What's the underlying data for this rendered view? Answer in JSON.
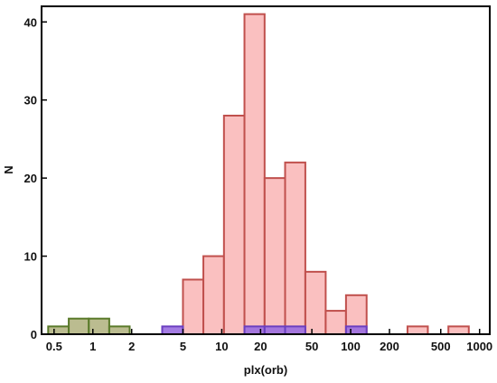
{
  "chart_data": {
    "type": "bar",
    "title": "",
    "xlabel": "plx(orb)",
    "ylabel": "N",
    "x_scale": "log",
    "xlim": [
      0.4,
      1200
    ],
    "ylim": [
      0,
      42
    ],
    "grid": false,
    "x_ticks": [
      0.5,
      1,
      2,
      5,
      10,
      20,
      50,
      100,
      200,
      500,
      1000
    ],
    "x_tick_labels": [
      "0.5",
      "1",
      "2",
      "5",
      "10",
      "20",
      "50",
      "100",
      "200",
      "500",
      "1000"
    ],
    "y_ticks": [
      0,
      10,
      20,
      30,
      40
    ],
    "y_tick_labels": [
      "0",
      "10",
      "20",
      "30",
      "40"
    ],
    "series": [
      {
        "fill": "#f9b9b9",
        "stroke": "#c0504d",
        "bins": [
          {
            "x0": 5.0,
            "x1": 7.2,
            "count": 7
          },
          {
            "x0": 7.2,
            "x1": 10.4,
            "count": 10
          },
          {
            "x0": 10.4,
            "x1": 15.0,
            "count": 28
          },
          {
            "x0": 15.0,
            "x1": 21.5,
            "count": 41
          },
          {
            "x0": 21.5,
            "x1": 31.0,
            "count": 20
          },
          {
            "x0": 31.0,
            "x1": 44.5,
            "count": 22
          },
          {
            "x0": 44.5,
            "x1": 64.0,
            "count": 8
          },
          {
            "x0": 64.0,
            "x1": 92.0,
            "count": 3
          },
          {
            "x0": 92.0,
            "x1": 133.0,
            "count": 5
          },
          {
            "x0": 276.0,
            "x1": 397.0,
            "count": 1
          },
          {
            "x0": 573.0,
            "x1": 825.0,
            "count": 1
          }
        ]
      },
      {
        "fill": "#b4b584",
        "stroke": "#5a7a2a",
        "bins": [
          {
            "x0": 0.45,
            "x1": 0.65,
            "count": 1
          },
          {
            "x0": 0.65,
            "x1": 0.93,
            "count": 2
          },
          {
            "x0": 0.93,
            "x1": 1.34,
            "count": 2
          },
          {
            "x0": 1.34,
            "x1": 1.93,
            "count": 1
          }
        ]
      },
      {
        "fill": "#9a6ee0",
        "stroke": "#6a3fc0",
        "bins": [
          {
            "x0": 3.45,
            "x1": 5.0,
            "count": 1
          },
          {
            "x0": 15.0,
            "x1": 21.5,
            "count": 1
          },
          {
            "x0": 21.5,
            "x1": 31.0,
            "count": 1
          },
          {
            "x0": 31.0,
            "x1": 44.5,
            "count": 1
          },
          {
            "x0": 92.0,
            "x1": 133.0,
            "count": 1
          }
        ]
      }
    ]
  }
}
